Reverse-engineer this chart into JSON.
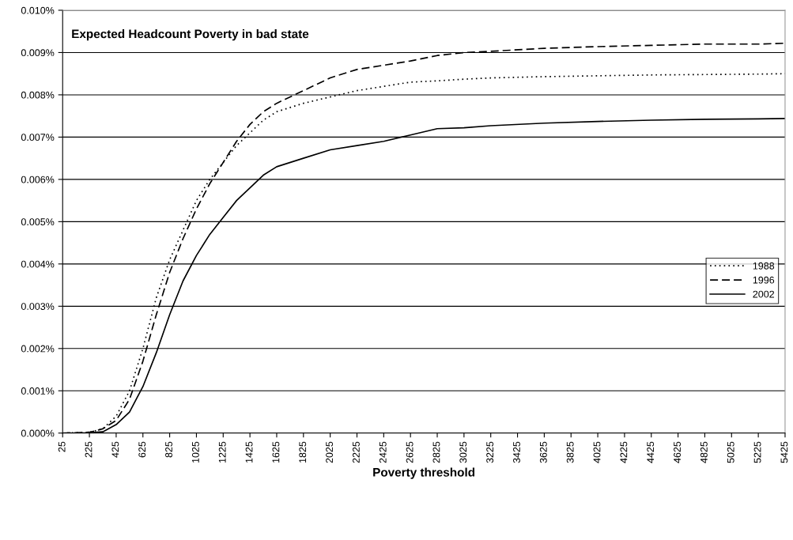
{
  "chart_data": {
    "type": "line",
    "title": "Expected Headcount Poverty in bad state",
    "xlabel": "Poverty threshold",
    "x": [
      25,
      125,
      225,
      325,
      425,
      525,
      625,
      725,
      825,
      925,
      1025,
      1125,
      1225,
      1325,
      1425,
      1525,
      1625,
      1825,
      2025,
      2225,
      2425,
      2625,
      2825,
      3025,
      3225,
      3625,
      4025,
      4425,
      4825,
      5225,
      5425
    ],
    "series": [
      {
        "name": "1988",
        "color": "#000000",
        "line_style": "dotted",
        "values": [
          0,
          1e-05,
          2e-05,
          0.0001,
          0.0004,
          0.001,
          0.002,
          0.0032,
          0.0041,
          0.0048,
          0.0055,
          0.006,
          0.0064,
          0.0068,
          0.0071,
          0.0074,
          0.0076,
          0.0078,
          0.00795,
          0.0081,
          0.0082,
          0.0083,
          0.00833,
          0.00837,
          0.0084,
          0.00843,
          0.00845,
          0.00847,
          0.00848,
          0.00849,
          0.0085
        ]
      },
      {
        "name": "1996",
        "color": "#000000",
        "line_style": "dashed",
        "values": [
          0,
          1e-05,
          2e-05,
          0.0001,
          0.0003,
          0.0008,
          0.0017,
          0.0028,
          0.0038,
          0.0046,
          0.0053,
          0.0059,
          0.0064,
          0.0069,
          0.0073,
          0.0076,
          0.0078,
          0.0081,
          0.0084,
          0.0086,
          0.0087,
          0.0088,
          0.00893,
          0.009,
          0.00903,
          0.0091,
          0.00914,
          0.00917,
          0.0092,
          0.0092,
          0.00922
        ]
      },
      {
        "name": "2002",
        "color": "#000000",
        "line_style": "solid",
        "values": [
          0,
          0,
          1e-05,
          3e-05,
          0.0002,
          0.0005,
          0.0011,
          0.0019,
          0.0028,
          0.0036,
          0.0042,
          0.0047,
          0.0051,
          0.0055,
          0.0058,
          0.0061,
          0.0063,
          0.0065,
          0.0067,
          0.0068,
          0.0069,
          0.00705,
          0.0072,
          0.00722,
          0.00727,
          0.00733,
          0.00737,
          0.0074,
          0.00742,
          0.00743,
          0.00744
        ]
      }
    ],
    "xlim": [
      25,
      5425
    ],
    "xticks": [
      25,
      225,
      425,
      625,
      825,
      1025,
      1225,
      1425,
      1625,
      1825,
      2025,
      2225,
      2425,
      2625,
      2825,
      3025,
      3225,
      3425,
      3625,
      3825,
      4025,
      4225,
      4425,
      4625,
      4825,
      5025,
      5225,
      5425
    ],
    "ylim": [
      0,
      0.01
    ],
    "yticks": [
      {
        "value": 0,
        "label": "0.000%"
      },
      {
        "value": 0.001,
        "label": "0.001%"
      },
      {
        "value": 0.002,
        "label": "0.002%"
      },
      {
        "value": 0.003,
        "label": "0.003%"
      },
      {
        "value": 0.004,
        "label": "0.004%"
      },
      {
        "value": 0.005,
        "label": "0.005%"
      },
      {
        "value": 0.006,
        "label": "0.006%"
      },
      {
        "value": 0.007,
        "label": "0.007%"
      },
      {
        "value": 0.008,
        "label": "0.008%"
      },
      {
        "value": 0.009,
        "label": "0.009%"
      },
      {
        "value": 0.01,
        "label": "0.010%"
      }
    ],
    "grid": "y",
    "legend": "right"
  }
}
